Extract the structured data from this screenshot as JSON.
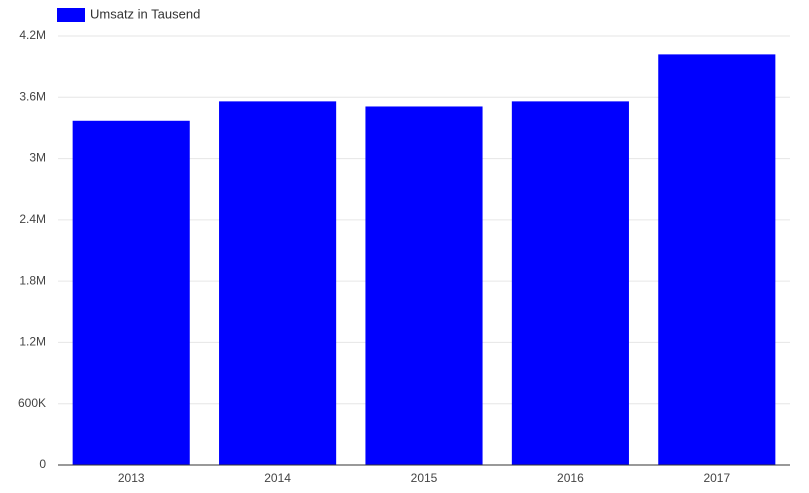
{
  "chart_data": {
    "type": "bar",
    "categories": [
      "2013",
      "2014",
      "2015",
      "2016",
      "2017"
    ],
    "series": [
      {
        "name": "Umsatz in Tausend",
        "color": "#0000ff",
        "values": [
          3370000,
          3560000,
          3510000,
          3560000,
          4020000
        ]
      }
    ],
    "ylim": [
      0,
      4200000
    ],
    "yticks": [
      0,
      {
        "value": 600000,
        "label": "600K"
      },
      {
        "value": 1200000,
        "label": "1.2M"
      },
      {
        "value": 1800000,
        "label": "1.8M"
      },
      {
        "value": 2400000,
        "label": "2.4M"
      },
      {
        "value": 3000000,
        "label": "3M"
      },
      {
        "value": 3600000,
        "label": "3.6M"
      },
      {
        "value": 4200000,
        "label": "4.2M"
      }
    ],
    "grid": true,
    "legend": "top-left"
  }
}
